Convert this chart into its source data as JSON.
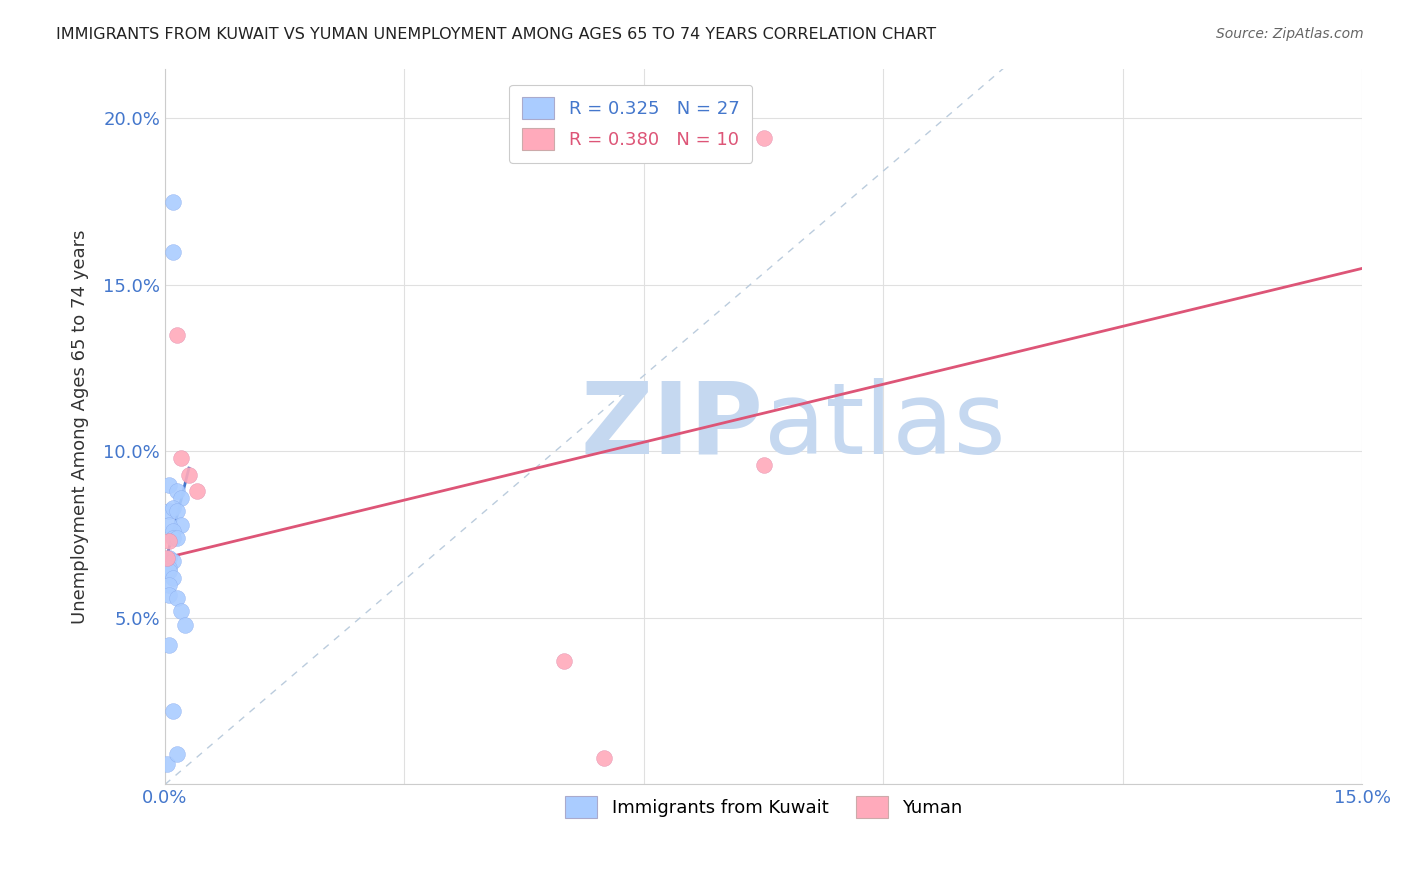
{
  "title": "IMMIGRANTS FROM KUWAIT VS YUMAN UNEMPLOYMENT AMONG AGES 65 TO 74 YEARS CORRELATION CHART",
  "source": "Source: ZipAtlas.com",
  "ylabel": "Unemployment Among Ages 65 to 74 years",
  "xlim": [
    0.0,
    0.15
  ],
  "ylim": [
    0.0,
    0.215
  ],
  "x_tick_pos": [
    0.0,
    0.03,
    0.06,
    0.09,
    0.12,
    0.15
  ],
  "x_tick_labels": [
    "0.0%",
    "",
    "",
    "",
    "",
    "15.0%"
  ],
  "y_tick_pos": [
    0.0,
    0.05,
    0.1,
    0.15,
    0.2
  ],
  "y_tick_labels": [
    "",
    "5.0%",
    "10.0%",
    "15.0%",
    "20.0%"
  ],
  "blue_R": "0.325",
  "blue_N": "27",
  "pink_R": "0.380",
  "pink_N": "10",
  "legend_label_blue": "Immigrants from Kuwait",
  "legend_label_pink": "Yuman",
  "watermark_zip": "ZIP",
  "watermark_atlas": "atlas",
  "blue_scatter_x": [
    0.0005,
    0.001,
    0.001,
    0.0015,
    0.002,
    0.0005,
    0.001,
    0.0015,
    0.002,
    0.0005,
    0.001,
    0.001,
    0.0015,
    0.0005,
    0.001,
    0.0005,
    0.0005,
    0.001,
    0.0005,
    0.0005,
    0.0015,
    0.002,
    0.0025,
    0.0005,
    0.001,
    0.0003,
    0.0015
  ],
  "blue_scatter_y": [
    0.09,
    0.175,
    0.16,
    0.088,
    0.086,
    0.082,
    0.083,
    0.082,
    0.078,
    0.078,
    0.076,
    0.074,
    0.074,
    0.068,
    0.067,
    0.065,
    0.064,
    0.062,
    0.06,
    0.057,
    0.056,
    0.052,
    0.048,
    0.042,
    0.022,
    0.006,
    0.009
  ],
  "pink_scatter_x": [
    0.0003,
    0.0005,
    0.0015,
    0.002,
    0.003,
    0.004,
    0.075,
    0.075,
    0.05,
    0.055
  ],
  "pink_scatter_y": [
    0.068,
    0.073,
    0.135,
    0.098,
    0.093,
    0.088,
    0.194,
    0.096,
    0.037,
    0.008
  ],
  "blue_line_x": [
    0.0003,
    0.003
  ],
  "blue_line_y": [
    0.069,
    0.095
  ],
  "pink_line_x": [
    0.0,
    0.15
  ],
  "pink_line_y": [
    0.068,
    0.155
  ],
  "dashed_line_x": [
    0.0,
    0.105
  ],
  "dashed_line_y": [
    0.0,
    0.215
  ],
  "blue_dot_color": "#aaccff",
  "pink_dot_color": "#ffaabb",
  "blue_line_color": "#4477cc",
  "pink_line_color": "#dd5577",
  "dashed_line_color": "#bbccdd",
  "grid_color": "#e0e0e0",
  "title_color": "#222222",
  "axis_label_color": "#4477cc",
  "watermark_zip_color": "#c5d8f0",
  "watermark_atlas_color": "#c5d8f0",
  "source_color": "#666666",
  "ylabel_color": "#333333"
}
